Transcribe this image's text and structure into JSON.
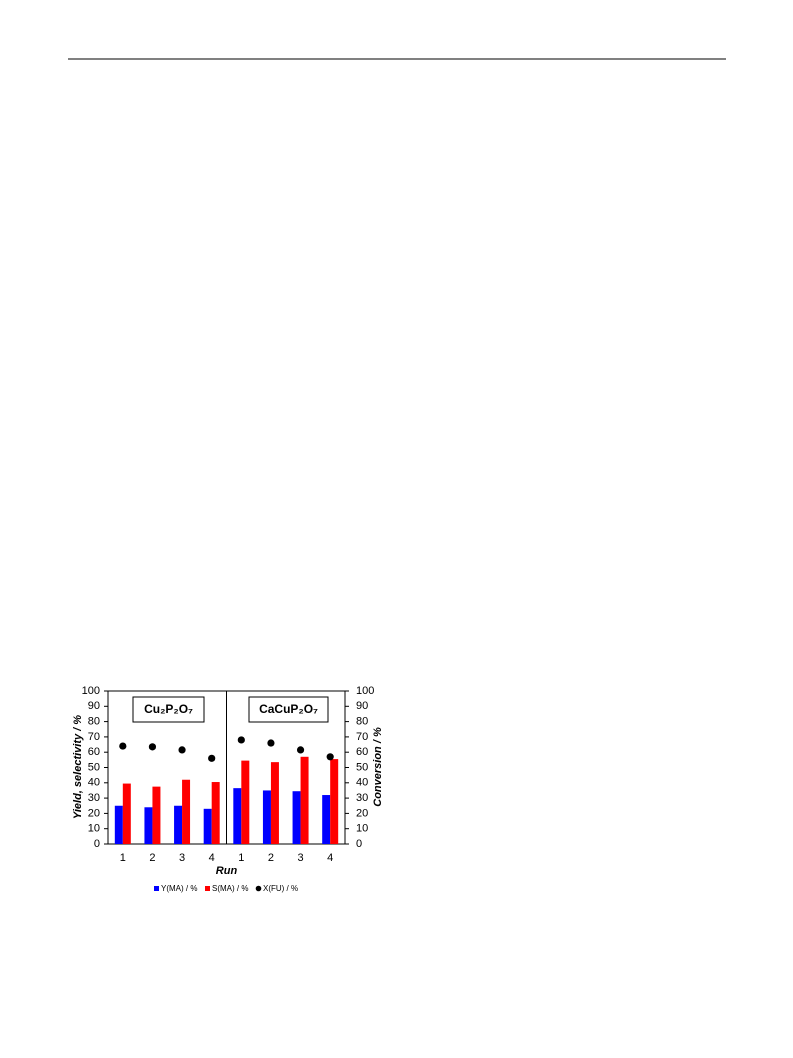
{
  "chart_data": {
    "type": "bar",
    "categories": [
      "1",
      "2",
      "3",
      "4",
      "1",
      "2",
      "3",
      "4"
    ],
    "annotations": [
      "Cu₂P₂O₇",
      "CaCuP₂O₇"
    ],
    "x_label": "Run",
    "y_label": "Yield, selectivity / %",
    "y2_label": "Conversion / %",
    "ylim": [
      0,
      100
    ],
    "yticks": [
      0,
      10,
      20,
      30,
      40,
      50,
      60,
      70,
      80,
      90,
      100
    ],
    "y2lim": [
      0,
      100
    ],
    "y2ticks": [
      0,
      10,
      20,
      30,
      40,
      50,
      60,
      70,
      80,
      90,
      100
    ],
    "grid": false,
    "series": [
      {
        "name": "Y(MA) / %",
        "color": "#0000ff",
        "type": "bar",
        "values": [
          25,
          24,
          25,
          23,
          36.5,
          35,
          34.5,
          32
        ]
      },
      {
        "name": "S(MA) / %",
        "color": "#ff0000",
        "type": "bar",
        "values": [
          39.5,
          37.5,
          42,
          40.5,
          54.5,
          53.5,
          57,
          55.5
        ]
      },
      {
        "name": "X(FU) / %",
        "color": "#000000",
        "type": "scatter",
        "axis": "y2",
        "values": [
          64,
          63.5,
          61.5,
          56,
          68,
          66,
          61.5,
          57
        ]
      }
    ]
  }
}
